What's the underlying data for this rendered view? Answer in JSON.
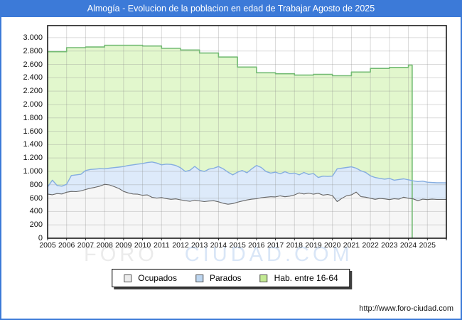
{
  "title": "Almogía - Evolucion de la poblacion en edad de Trabajar Agosto de 2025",
  "footer": {
    "url": "http://www.foro-ciudad.com"
  },
  "watermark": {
    "part1": "FORO",
    "part2": "CIUDAD.COM"
  },
  "colors": {
    "accent_blue": "#3c7ad8",
    "plot_background": "#ffffff",
    "grid_line": "#8c8c8c",
    "plot_border": "#1a1a1a",
    "hab_fill": "#e2f7cd",
    "hab_line": "#74bb74",
    "parados_fill": "#ddeafa",
    "parados_line": "#85ade0",
    "ocupados_fill": "#f6f6f6",
    "ocupados_line": "#666666"
  },
  "chart_data": {
    "type": "area",
    "title": "Almogía - Evolucion de la poblacion en edad de Trabajar Agosto de 2025",
    "xlabel": "",
    "ylabel": "",
    "grid": true,
    "x_axis": {
      "domain": [
        2005,
        2026
      ],
      "ticks": [
        "2005",
        "2006",
        "2007",
        "2008",
        "2009",
        "2010",
        "2011",
        "2012",
        "2013",
        "2014",
        "2015",
        "2016",
        "2017",
        "2018",
        "2019",
        "2020",
        "2021",
        "2022",
        "2023",
        "2024",
        "2025"
      ]
    },
    "y_axis": {
      "domain": [
        0,
        3180
      ],
      "grid_interval": 200,
      "ticks": [
        "0",
        "200",
        "400",
        "600",
        "800",
        "1.000",
        "1.200",
        "1.400",
        "1.600",
        "1.800",
        "2.000",
        "2.200",
        "2.400",
        "2.600",
        "2.800",
        "3.000"
      ]
    },
    "legend": {
      "position": "bottom",
      "items": [
        {
          "label": "Ocupados",
          "swatch": "#ececec"
        },
        {
          "label": "Parados",
          "swatch": "#bdd6f0"
        },
        {
          "label": "Hab. entre 16-64",
          "swatch": "#c3ea93"
        }
      ]
    },
    "series": {
      "ocupados": {
        "name": "Ocupados",
        "x_start": 2005,
        "x_step": 0.25,
        "values": [
          660,
          650,
          668,
          662,
          688,
          700,
          697,
          708,
          728,
          748,
          762,
          778,
          806,
          798,
          772,
          744,
          700,
          678,
          662,
          658,
          642,
          648,
          612,
          600,
          608,
          592,
          582,
          588,
          574,
          562,
          552,
          570,
          558,
          548,
          556,
          560,
          545,
          522,
          508,
          518,
          538,
          556,
          572,
          584,
          590,
          606,
          614,
          620,
          618,
          634,
          620,
          630,
          648,
          678,
          662,
          674,
          658,
          672,
          644,
          654,
          638,
          548,
          598,
          636,
          648,
          690,
          622,
          614,
          598,
          582,
          594,
          588,
          578,
          590,
          584,
          614,
          598,
          588,
          562,
          584,
          578,
          584,
          580,
          580,
          580
        ]
      },
      "parados": {
        "name": "Parados",
        "x_start": 2005,
        "x_step": 0.25,
        "values": [
          768,
          868,
          788,
          778,
          806,
          938,
          948,
          956,
          1012,
          1028,
          1034,
          1040,
          1038,
          1048,
          1056,
          1064,
          1072,
          1088,
          1098,
          1108,
          1118,
          1132,
          1140,
          1124,
          1098,
          1108,
          1104,
          1088,
          1054,
          998,
          1018,
          1074,
          1018,
          998,
          1034,
          1048,
          1072,
          1038,
          988,
          948,
          988,
          1014,
          978,
          1038,
          1088,
          1058,
          998,
          974,
          988,
          964,
          994,
          968,
          974,
          948,
          984,
          954,
          968,
          908,
          928,
          924,
          928,
          1038,
          1048,
          1058,
          1068,
          1048,
          1008,
          984,
          934,
          908,
          894,
          884,
          894,
          868,
          878,
          888,
          874,
          858,
          848,
          854,
          838,
          834,
          830,
          830,
          828
        ]
      },
      "hab_16_64": {
        "name": "Hab. entre 16-64",
        "years": [
          2005,
          2006,
          2007,
          2008,
          2009,
          2010,
          2011,
          2012,
          2013,
          2014,
          2015,
          2016,
          2017,
          2018,
          2019,
          2020,
          2021,
          2022,
          2023,
          2024
        ],
        "values": [
          2790,
          2850,
          2860,
          2885,
          2885,
          2875,
          2840,
          2815,
          2770,
          2710,
          2560,
          2475,
          2460,
          2440,
          2450,
          2430,
          2485,
          2540,
          2555,
          2590
        ],
        "end_x": 2024.2
      }
    }
  }
}
